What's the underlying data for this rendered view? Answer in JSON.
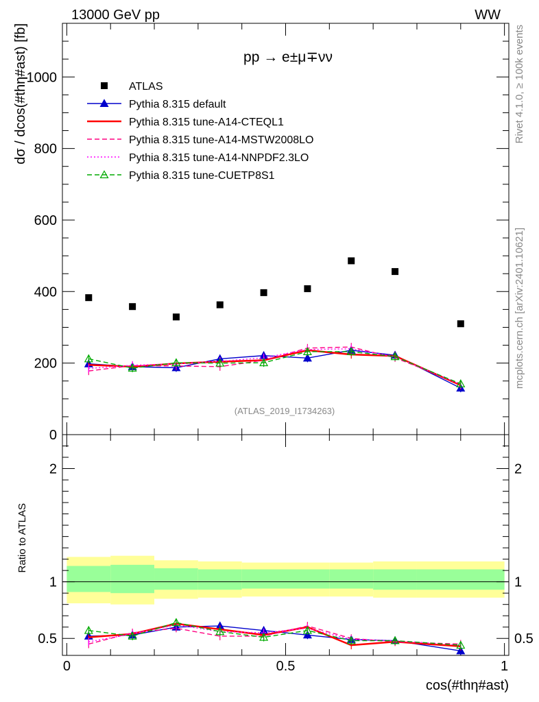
{
  "header": {
    "energy_label": "13000 GeV pp",
    "process_label": "WW",
    "reaction": "pp → e±μ∓νν",
    "analysis_id": "(ATLAS_2019_I1734263)",
    "rivet_label": "Rivet 4.1.0, ≥ 100k events",
    "mcplots_label": "mcplots.cern.ch [arXiv:2401.10621]"
  },
  "chart_data": [
    {
      "type": "scatter",
      "panel": "main",
      "ylabel": "dσ / dcos(#thη#ast) [fb]",
      "ylim": [
        0,
        1150
      ],
      "xlim": [
        -0.01,
        1.01
      ],
      "yticks": [
        0,
        200,
        400,
        600,
        800,
        1000
      ],
      "ytick_labels": [
        "0",
        "200",
        "400",
        "600",
        "800",
        "1000"
      ],
      "x": [
        0.05,
        0.15,
        0.25,
        0.35,
        0.45,
        0.55,
        0.65,
        0.75,
        0.9
      ],
      "series": [
        {
          "name": "ATLAS",
          "color": "#000000",
          "style": "data",
          "values": [
            383,
            358,
            329,
            363,
            397,
            408,
            486,
            456,
            310
          ]
        },
        {
          "name": "Pythia 8.315 default",
          "color": "#0000cc",
          "style": "solid",
          "marker": "triangle",
          "values": [
            198,
            190,
            187,
            212,
            221,
            214,
            236,
            222,
            130
          ]
        },
        {
          "name": "Pythia 8.315 tune-A14-CTEQL1",
          "color": "#ff0000",
          "style": "solid-thick",
          "marker": "none",
          "values": [
            195,
            190,
            199,
            204,
            208,
            236,
            224,
            220,
            138
          ]
        },
        {
          "name": "Pythia 8.315 tune-A14-MSTW2008LO",
          "color": "#ff0080",
          "style": "dashed",
          "marker": "none",
          "values": [
            178,
            193,
            192,
            190,
            208,
            242,
            245,
            215,
            142
          ]
        },
        {
          "name": "Pythia 8.315 tune-A14-NNPDF2.3LO",
          "color": "#ff00ff",
          "style": "dotted",
          "marker": "none",
          "values": [
            185,
            194,
            198,
            205,
            215,
            238,
            240,
            218,
            140
          ]
        },
        {
          "name": "Pythia 8.315 tune-CUETP8S1",
          "color": "#00aa00",
          "style": "dashed",
          "marker": "open-triangle",
          "values": [
            212,
            186,
            201,
            200,
            201,
            232,
            232,
            218,
            142
          ]
        }
      ]
    },
    {
      "type": "line",
      "panel": "ratio",
      "ylabel": "Ratio to ATLAS",
      "xlabel": "cos(#thη#ast)",
      "ylim": [
        0.35,
        2.3
      ],
      "xlim": [
        -0.01,
        1.01
      ],
      "yticks": [
        0.5,
        1,
        2
      ],
      "ytick_labels": [
        "0.5",
        "1",
        "2"
      ],
      "xticks": [
        0,
        0.5,
        1
      ],
      "xtick_labels": [
        "0",
        "0.5",
        "1"
      ],
      "bins": [
        0,
        0.1,
        0.2,
        0.3,
        0.4,
        0.5,
        0.6,
        0.7,
        0.8,
        1.0
      ],
      "band_yellow_low": [
        0.81,
        0.8,
        0.85,
        0.86,
        0.87,
        0.87,
        0.87,
        0.86,
        0.86
      ],
      "band_yellow_high": [
        1.22,
        1.23,
        1.19,
        1.18,
        1.17,
        1.17,
        1.17,
        1.18,
        1.18
      ],
      "band_green_low": [
        0.91,
        0.9,
        0.93,
        0.93,
        0.94,
        0.94,
        0.94,
        0.93,
        0.93
      ],
      "band_green_high": [
        1.14,
        1.15,
        1.12,
        1.11,
        1.11,
        1.11,
        1.11,
        1.11,
        1.11
      ],
      "x": [
        0.05,
        0.15,
        0.25,
        0.35,
        0.45,
        0.55,
        0.65,
        0.75,
        0.9
      ],
      "series": [
        {
          "name": "Pythia 8.315 default",
          "color": "#0000cc",
          "style": "solid",
          "marker": "triangle",
          "values": [
            0.52,
            0.53,
            0.6,
            0.61,
            0.57,
            0.53,
            0.49,
            0.48,
            0.39
          ]
        },
        {
          "name": "Pythia 8.315 tune-A14-CTEQL1",
          "color": "#ff0000",
          "style": "solid-thick",
          "marker": "none",
          "values": [
            0.51,
            0.54,
            0.63,
            0.58,
            0.53,
            0.6,
            0.44,
            0.47,
            0.43
          ]
        },
        {
          "name": "Pythia 8.315 tune-A14-MSTW2008LO",
          "color": "#ff0080",
          "style": "dashed",
          "marker": "none",
          "values": [
            0.45,
            0.55,
            0.59,
            0.52,
            0.52,
            0.61,
            0.5,
            0.47,
            0.45
          ]
        },
        {
          "name": "Pythia 8.315 tune-A14-NNPDF2.3LO",
          "color": "#ff00ff",
          "style": "dotted",
          "marker": "none",
          "values": [
            0.47,
            0.54,
            0.62,
            0.56,
            0.55,
            0.59,
            0.49,
            0.48,
            0.44
          ]
        },
        {
          "name": "Pythia 8.315 tune-CUETP8S1",
          "color": "#00aa00",
          "style": "dashed",
          "marker": "open-triangle",
          "values": [
            0.57,
            0.52,
            0.64,
            0.56,
            0.51,
            0.57,
            0.48,
            0.48,
            0.44
          ]
        }
      ]
    }
  ]
}
